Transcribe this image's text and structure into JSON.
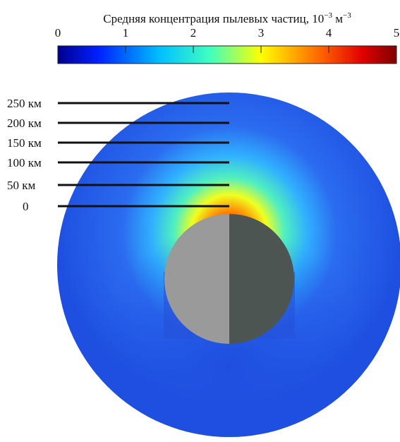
{
  "colorbar": {
    "title": {
      "text": "Средняя концентрация пылевых частиц, 10",
      "exp1": "−3",
      "unit": " м",
      "exp2": "−3"
    },
    "ticks": [
      0,
      1,
      2,
      3,
      4,
      5
    ]
  },
  "altitudes": [
    "250 км",
    "200 км",
    "150 км",
    "100 км",
    "50 км",
    "0"
  ]
}
